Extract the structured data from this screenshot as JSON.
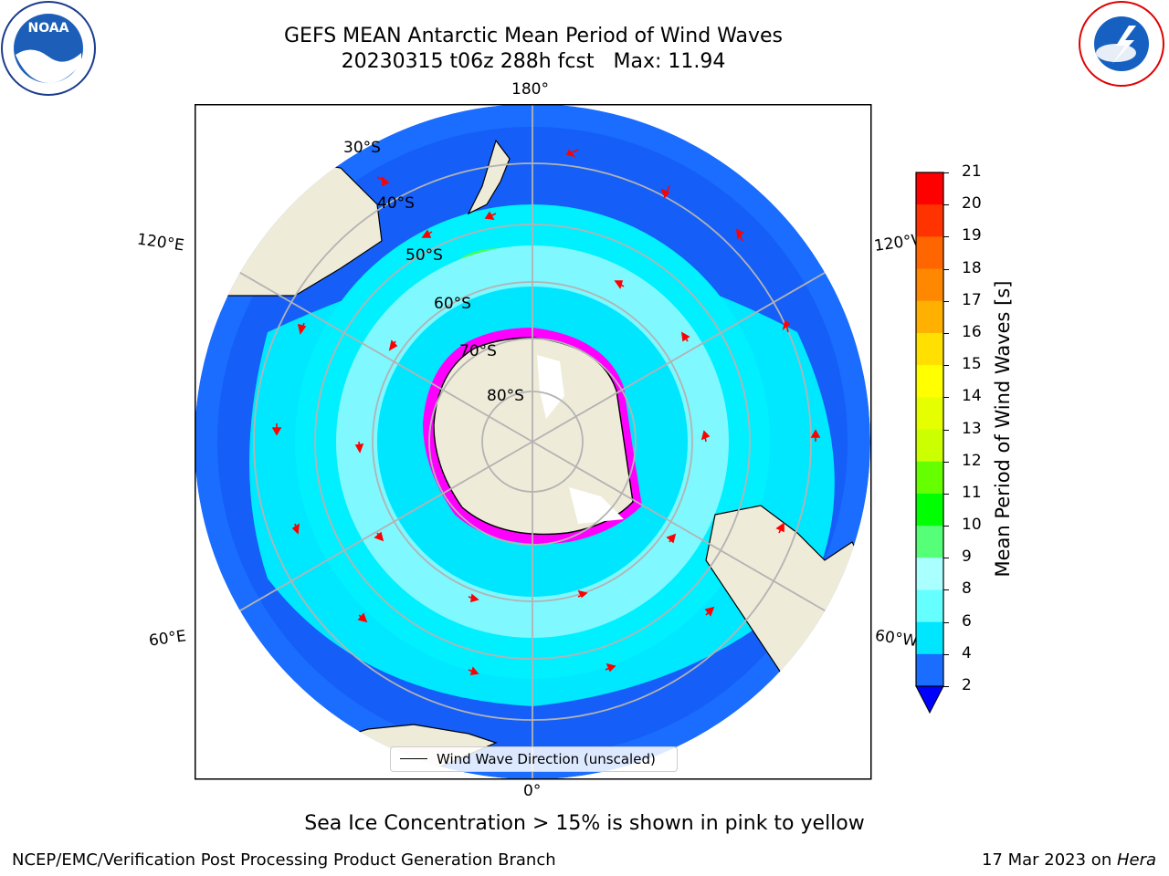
{
  "title": {
    "line1": "GEFS MEAN Antarctic Mean Period of Wind Waves",
    "line2": "20230315 t06z 288h fcst   Max: 11.94"
  },
  "map": {
    "projection": "south-polar-stereographic",
    "longitude_labels": [
      "180°",
      "120°E",
      "120°W",
      "60°E",
      "60°W",
      "0°"
    ],
    "latitude_labels": [
      "30°S",
      "40°S",
      "50°S",
      "60°S",
      "70°S",
      "80°S"
    ],
    "colors": {
      "land": "#efebd9",
      "ocean_short": "#1a6dff",
      "ocean_mid": "#00e8ff",
      "ice_edge": "#ff00ff",
      "arrow": "#ff0000",
      "grid": "#b3b3b3"
    }
  },
  "legend": {
    "label": "Wind Wave Direction (unscaled)"
  },
  "colorbar": {
    "label": "Mean Period of Wind Waves [s]",
    "ticks": [
      "21",
      "20",
      "19",
      "18",
      "17",
      "16",
      "15",
      "14",
      "13",
      "12",
      "11",
      "10",
      "9",
      "8",
      "6",
      "4",
      "2"
    ],
    "colors": [
      "#ff0000",
      "#ff3300",
      "#ff6600",
      "#ff8800",
      "#ffb000",
      "#ffe000",
      "#ffff00",
      "#e6ff00",
      "#ccff00",
      "#66ff00",
      "#00ff00",
      "#55ff77",
      "#aaffff",
      "#66ffff",
      "#00e6ff",
      "#1a6dff"
    ],
    "extend_color": "#0000ff"
  },
  "note": "Sea Ice Concentration > 15% is shown in pink to yellow",
  "footer": {
    "left": "NCEP/EMC/Verification Post Processing Product Generation Branch",
    "right_date": "17 Mar 2023 on ",
    "right_machine": "Hera"
  }
}
